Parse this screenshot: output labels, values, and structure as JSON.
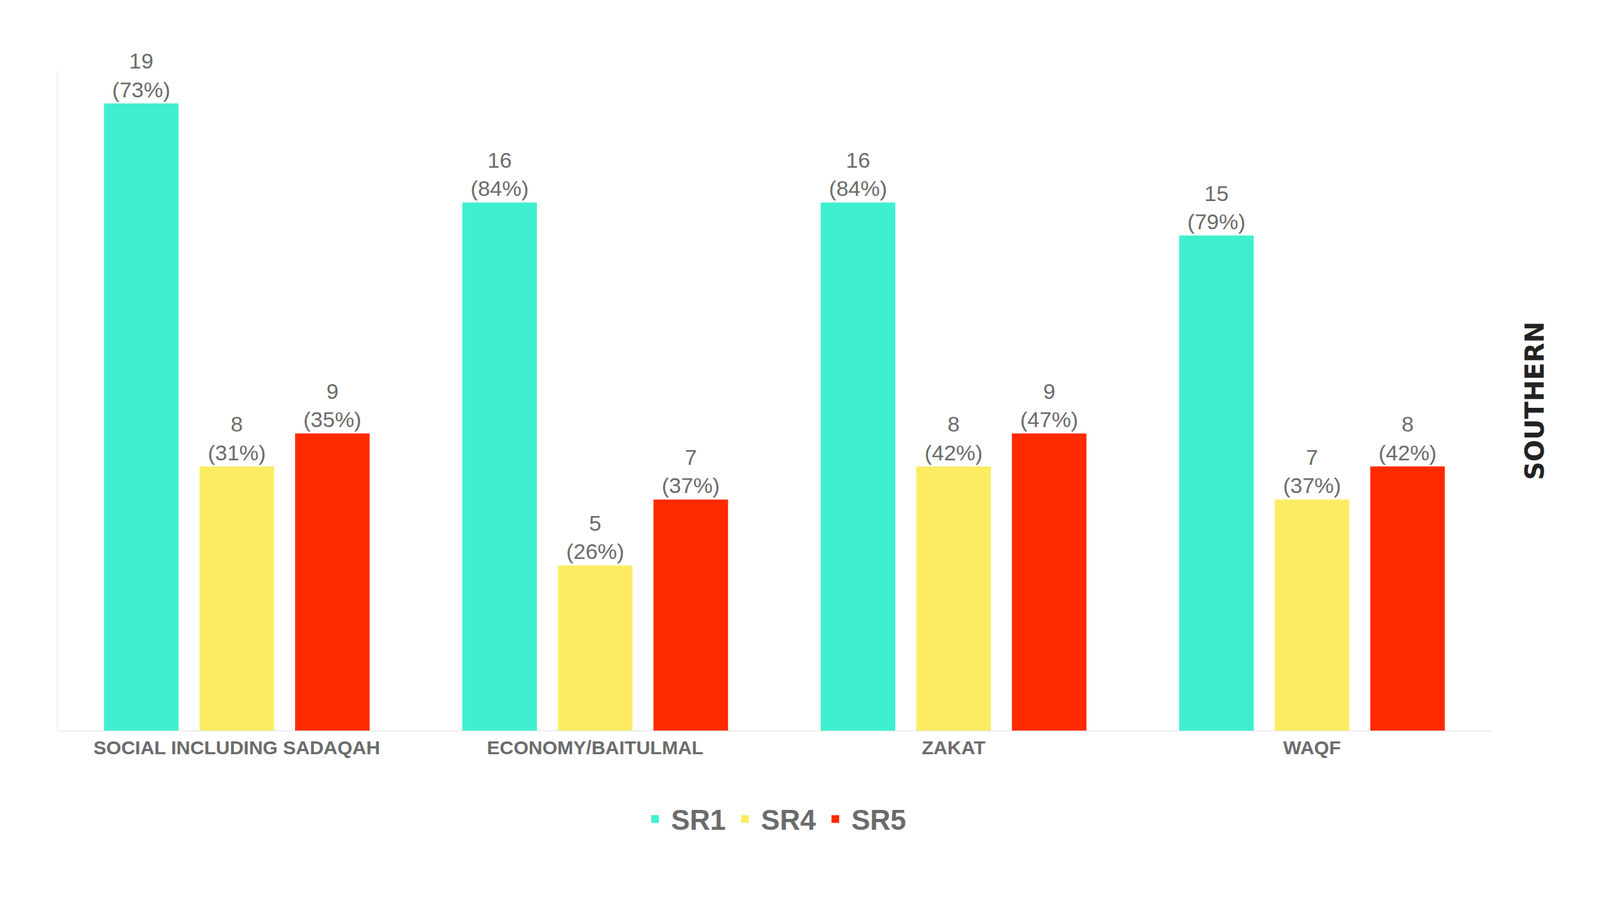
{
  "chart_data": {
    "type": "bar",
    "categories": [
      "SOCIAL INCLUDING SADAQAH",
      "ECONOMY/BAITULMAL",
      "ZAKAT",
      "WAQF"
    ],
    "series": [
      {
        "name": "SR1",
        "color": "#3ef0cf",
        "values": [
          19,
          16,
          16,
          15
        ],
        "value_labels": [
          "19\n(73%)",
          "16\n(84%)",
          "16\n(84%)",
          "15\n(79%)"
        ]
      },
      {
        "name": "SR4",
        "color": "#fcec62",
        "values": [
          8,
          5,
          8,
          7
        ],
        "value_labels": [
          "8\n(31%)",
          "5\n(26%)",
          "8\n(42%)",
          "7\n(37%)"
        ]
      },
      {
        "name": "SR5",
        "color": "#ff2a00",
        "values": [
          9,
          7,
          9,
          8
        ],
        "value_labels": [
          "9\n(35%)",
          "7\n(37%)",
          "9\n(47%)",
          "8\n(42%)"
        ]
      }
    ],
    "ylim": [
      0,
      20
    ],
    "grid": false,
    "data_labels": true,
    "tick_labels": "x",
    "legend": "bottom",
    "annotations": [
      "SOUTHERN"
    ]
  }
}
